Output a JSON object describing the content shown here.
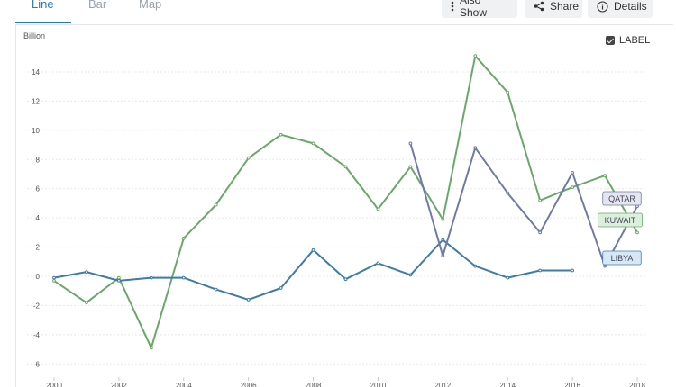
{
  "tabs": [
    {
      "label": "Line",
      "active": true
    },
    {
      "label": "Bar",
      "active": false
    },
    {
      "label": "Map",
      "active": false
    }
  ],
  "toolbar": {
    "also_show": {
      "label": "Also Show",
      "icon": "vertical-dots-icon"
    },
    "share": {
      "label": "Share",
      "icon": "share-icon"
    },
    "details": {
      "label": "Details",
      "icon": "info-icon"
    }
  },
  "label_toggle": {
    "label": "LABEL",
    "checked": true
  },
  "colors": {
    "accent": "#2a7ab0",
    "grid": "#e8e8e8",
    "axis_text": "#555555"
  },
  "chart_data": {
    "type": "line",
    "ylabel": "Billion",
    "ylim": [
      -6,
      15
    ],
    "yticks": [
      -6,
      -4,
      -2,
      0,
      2,
      4,
      6,
      8,
      10,
      12,
      14
    ],
    "xlim": [
      2000,
      2018
    ],
    "xticks": [
      2000,
      2002,
      2004,
      2006,
      2008,
      2010,
      2012,
      2014,
      2016,
      2018
    ],
    "grid": true,
    "series": [
      {
        "name": "KUWAIT",
        "color": "#6aa86a",
        "label_bg": "#dcefdc",
        "points": [
          [
            2000,
            -0.3
          ],
          [
            2001,
            -1.8
          ],
          [
            2002,
            -0.1
          ],
          [
            2003,
            -4.9
          ],
          [
            2004,
            2.6
          ],
          [
            2005,
            4.9
          ],
          [
            2006,
            8.1
          ],
          [
            2007,
            9.7
          ],
          [
            2008,
            9.1
          ],
          [
            2009,
            7.5
          ],
          [
            2010,
            4.6
          ],
          [
            2011,
            7.5
          ],
          [
            2012,
            3.9
          ],
          [
            2013,
            15.1
          ],
          [
            2014,
            12.6
          ],
          [
            2015,
            5.2
          ],
          [
            2016,
            6.1
          ],
          [
            2017,
            6.9
          ],
          [
            2018,
            3.0
          ]
        ]
      },
      {
        "name": "LIBYA",
        "color": "#3e7ca6",
        "label_bg": "#d6e8f5",
        "points": [
          [
            2000,
            -0.1
          ],
          [
            2001,
            0.3
          ],
          [
            2002,
            -0.3
          ],
          [
            2003,
            -0.1
          ],
          [
            2004,
            -0.1
          ],
          [
            2005,
            -0.9
          ],
          [
            2006,
            -1.6
          ],
          [
            2007,
            -0.8
          ],
          [
            2008,
            1.8
          ],
          [
            2009,
            -0.2
          ],
          [
            2010,
            0.9
          ],
          [
            2011,
            0.1
          ],
          [
            2012,
            2.5
          ],
          [
            2013,
            0.7
          ],
          [
            2014,
            -0.1
          ],
          [
            2015,
            0.4
          ],
          [
            2016,
            0.4
          ]
        ]
      },
      {
        "name": "QATAR",
        "color": "#6f7aa6",
        "label_bg": "#e4e6f0",
        "points": [
          [
            2011,
            9.1
          ],
          [
            2012,
            1.4
          ],
          [
            2013,
            8.8
          ],
          [
            2014,
            5.7
          ],
          [
            2015,
            3.0
          ],
          [
            2016,
            7.1
          ],
          [
            2017,
            0.7
          ],
          [
            2018,
            4.8
          ]
        ]
      }
    ]
  }
}
